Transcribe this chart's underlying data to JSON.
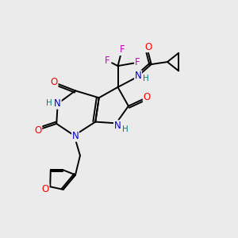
{
  "background_color": "#ebebeb",
  "colors": {
    "C": "#000000",
    "N": "#0000cc",
    "O": "#ff0000",
    "F": "#cc00cc",
    "H": "#008080",
    "bond": "#000000"
  },
  "lw": 1.4,
  "fs": 8.5,
  "fs_small": 7.5
}
